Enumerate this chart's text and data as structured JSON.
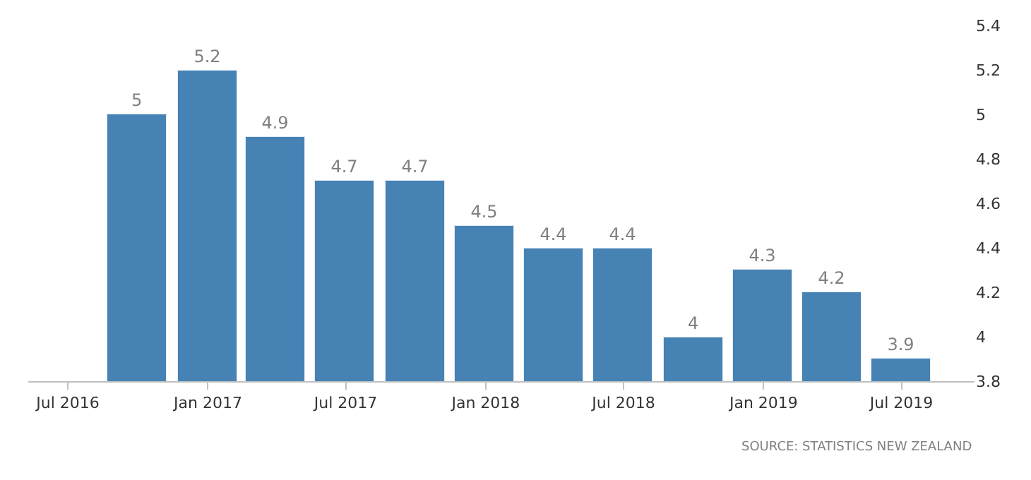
{
  "chart_data": {
    "type": "bar",
    "color": "#4682b4",
    "x": [
      "2016-09-30",
      "2016-12-31",
      "2017-03-31",
      "2017-06-30",
      "2017-09-30",
      "2017-12-31",
      "2018-03-31",
      "2018-06-30",
      "2018-09-30",
      "2018-12-31",
      "2019-03-31",
      "2019-06-30"
    ],
    "values": [
      5,
      5.2,
      4.9,
      4.7,
      4.7,
      4.5,
      4.4,
      4.4,
      4,
      4.3,
      4.2,
      3.9
    ],
    "data_labels": true,
    "xlim": [
      "2016-05-10",
      "2019-10-05"
    ],
    "xticks": [
      {
        "value": "2016-07-01",
        "label": "Jul 2016"
      },
      {
        "value": "2017-01-01",
        "label": "Jan 2017"
      },
      {
        "value": "2017-07-01",
        "label": "Jul 2017"
      },
      {
        "value": "2018-01-01",
        "label": "Jan 2018"
      },
      {
        "value": "2018-07-01",
        "label": "Jul 2018"
      },
      {
        "value": "2019-01-01",
        "label": "Jan 2019"
      },
      {
        "value": "2019-07-01",
        "label": "Jul 2019"
      }
    ],
    "ylim": [
      3.8,
      5.4
    ],
    "yticks": [
      3.8,
      4,
      4.2,
      4.4,
      4.6,
      4.8,
      5,
      5.2,
      5.4
    ],
    "legend": false,
    "annotations": [
      "SOURCE: STATISTICS NEW ZEALAND"
    ]
  }
}
